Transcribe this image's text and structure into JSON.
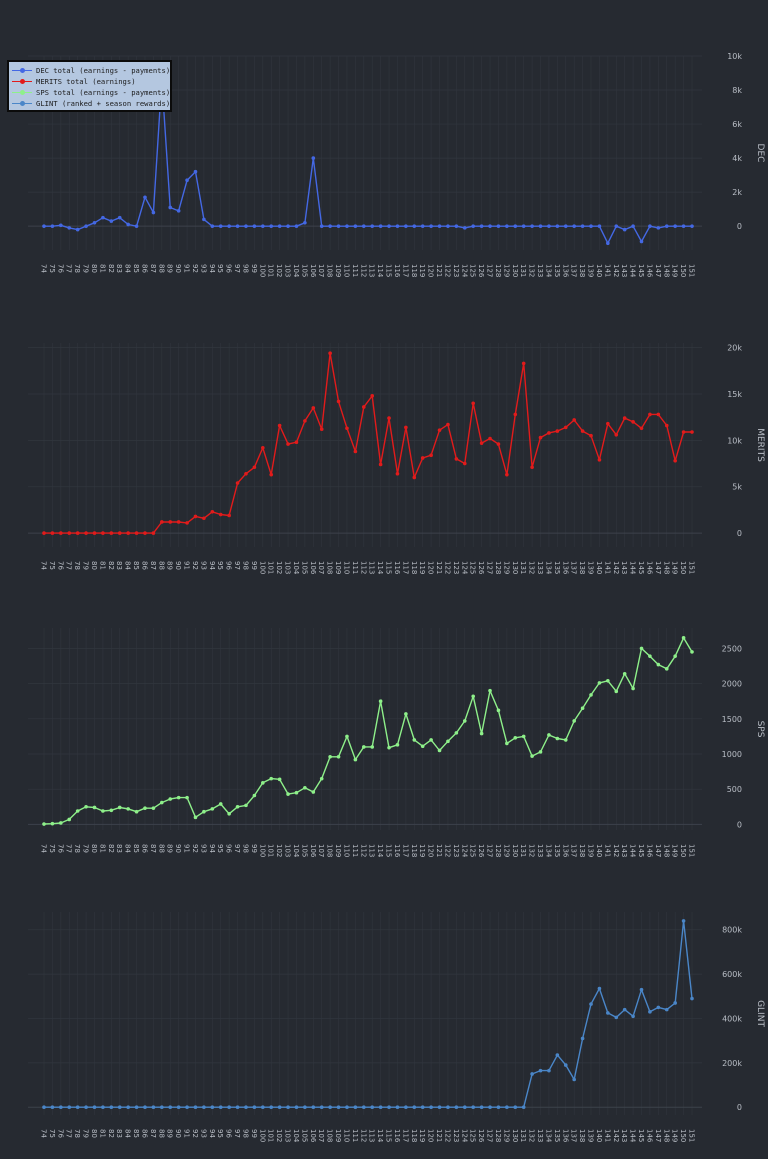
{
  "theme": {
    "background": "#262a31",
    "grid": "#31363e",
    "zero_line": "#3c424b",
    "tick_text": "#b9bec6",
    "legend_bg": "#b4c7e0"
  },
  "legend": [
    {
      "label": "DEC total (earnings - payments)",
      "color": "#4468e4"
    },
    {
      "label": "MERITS  total (earnings)",
      "color": "#e21b1b"
    },
    {
      "label": "SPS total (earnings - payments)",
      "color": "#8ef08a"
    },
    {
      "label": "GLINT (ranked + season rewards)",
      "color": "#4a86c8"
    }
  ],
  "chart_data": [
    {
      "type": "line",
      "ylabel": "DEC",
      "color": "#4468e4",
      "legend_position": "top-left",
      "grid": true,
      "ylim": [
        -1400,
        10000
      ],
      "yticks": [
        0,
        2000,
        4000,
        6000,
        8000,
        10000
      ],
      "ytick_labels": [
        "0",
        "2k",
        "4k",
        "6k",
        "8k",
        "10k"
      ],
      "x": [
        "74",
        "75",
        "76",
        "77",
        "78",
        "79",
        "80",
        "81",
        "82",
        "83",
        "84",
        "85",
        "86",
        "87",
        "88",
        "89",
        "90",
        "91",
        "92",
        "93",
        "94",
        "95",
        "96",
        "97",
        "98",
        "99",
        "100",
        "101",
        "102",
        "103",
        "104",
        "105",
        "106",
        "107",
        "108",
        "109",
        "110",
        "111",
        "112",
        "113",
        "114",
        "115",
        "116",
        "117",
        "118",
        "119",
        "120",
        "121",
        "122",
        "123",
        "124",
        "125",
        "126",
        "127",
        "128",
        "129",
        "130",
        "131",
        "132",
        "133",
        "134",
        "135",
        "136",
        "137",
        "138",
        "139",
        "140",
        "141",
        "142",
        "143",
        "144",
        "145",
        "146",
        "147",
        "148",
        "149",
        "150",
        "151"
      ],
      "values": [
        0,
        0,
        50,
        -100,
        -200,
        0,
        200,
        500,
        300,
        500,
        100,
        0,
        1700,
        800,
        8600,
        1100,
        900,
        2700,
        3200,
        400,
        0,
        0,
        0,
        0,
        0,
        0,
        0,
        0,
        0,
        0,
        0,
        200,
        4000,
        0,
        0,
        0,
        0,
        0,
        0,
        0,
        0,
        0,
        0,
        0,
        0,
        0,
        0,
        0,
        0,
        0,
        -100,
        0,
        0,
        0,
        0,
        0,
        0,
        0,
        0,
        0,
        0,
        0,
        0,
        0,
        0,
        0,
        0,
        -1000,
        0,
        -200,
        0,
        -900,
        0,
        -100,
        0,
        0,
        0,
        0
      ]
    },
    {
      "type": "line",
      "ylabel": "MERITS",
      "color": "#e21b1b",
      "grid": true,
      "ylim": [
        -1500,
        20500
      ],
      "yticks": [
        0,
        5000,
        10000,
        15000,
        20000
      ],
      "ytick_labels": [
        "0",
        "5k",
        "10k",
        "15k",
        "20k"
      ],
      "x": [
        "74",
        "75",
        "76",
        "77",
        "78",
        "79",
        "80",
        "81",
        "82",
        "83",
        "84",
        "85",
        "86",
        "87",
        "88",
        "89",
        "90",
        "91",
        "92",
        "93",
        "94",
        "95",
        "96",
        "97",
        "98",
        "99",
        "100",
        "101",
        "102",
        "103",
        "104",
        "105",
        "106",
        "107",
        "108",
        "109",
        "110",
        "111",
        "112",
        "113",
        "114",
        "115",
        "116",
        "117",
        "118",
        "119",
        "120",
        "121",
        "122",
        "123",
        "124",
        "125",
        "126",
        "127",
        "128",
        "129",
        "130",
        "131",
        "132",
        "133",
        "134",
        "135",
        "136",
        "137",
        "138",
        "139",
        "140",
        "141",
        "142",
        "143",
        "144",
        "145",
        "146",
        "147",
        "148",
        "149",
        "150",
        "151"
      ],
      "values": [
        0,
        0,
        0,
        0,
        0,
        0,
        0,
        0,
        0,
        0,
        0,
        0,
        0,
        0,
        1200,
        1200,
        1200,
        1100,
        1800,
        1600,
        2300,
        2000,
        1900,
        5400,
        6400,
        7100,
        9200,
        6300,
        11600,
        9600,
        9800,
        12100,
        13500,
        11200,
        19400,
        14200,
        11300,
        8800,
        13600,
        14800,
        7400,
        12400,
        6400,
        11400,
        6000,
        8100,
        8400,
        11100,
        11700,
        8000,
        7500,
        14000,
        9700,
        10200,
        9600,
        6300,
        12800,
        18300,
        7100,
        10300,
        10800,
        11000,
        11400,
        12200,
        11000,
        10500,
        7900,
        11800,
        10600,
        12400,
        12000,
        11300,
        12800,
        12800,
        11600,
        7800,
        10900,
        10900
      ]
    },
    {
      "type": "line",
      "ylabel": "SPS",
      "color": "#8ef08a",
      "grid": true,
      "ylim": [
        -80,
        2790
      ],
      "yticks": [
        0,
        500,
        1000,
        1500,
        2000,
        2500
      ],
      "ytick_labels": [
        "0",
        "500",
        "1000",
        "1500",
        "2000",
        "2500"
      ],
      "x": [
        "74",
        "75",
        "76",
        "77",
        "78",
        "79",
        "80",
        "81",
        "82",
        "83",
        "84",
        "85",
        "86",
        "87",
        "88",
        "89",
        "90",
        "91",
        "92",
        "93",
        "94",
        "95",
        "96",
        "97",
        "98",
        "99",
        "100",
        "101",
        "102",
        "103",
        "104",
        "105",
        "106",
        "107",
        "108",
        "109",
        "110",
        "111",
        "112",
        "113",
        "114",
        "115",
        "116",
        "117",
        "118",
        "119",
        "120",
        "121",
        "122",
        "123",
        "124",
        "125",
        "126",
        "127",
        "128",
        "129",
        "130",
        "131",
        "132",
        "133",
        "134",
        "135",
        "136",
        "137",
        "138",
        "139",
        "140",
        "141",
        "142",
        "143",
        "144",
        "145",
        "146",
        "147",
        "148",
        "149",
        "150",
        "151"
      ],
      "values": [
        5,
        10,
        20,
        70,
        190,
        250,
        240,
        190,
        200,
        240,
        220,
        180,
        230,
        230,
        310,
        360,
        380,
        380,
        100,
        180,
        220,
        290,
        150,
        250,
        270,
        410,
        590,
        650,
        640,
        430,
        450,
        520,
        460,
        650,
        960,
        960,
        1250,
        920,
        1100,
        1100,
        1750,
        1090,
        1130,
        1570,
        1200,
        1110,
        1200,
        1050,
        1180,
        1300,
        1470,
        1820,
        1290,
        1900,
        1620,
        1150,
        1230,
        1250,
        970,
        1030,
        1270,
        1220,
        1200,
        1470,
        1650,
        1840,
        2010,
        2040,
        1890,
        2140,
        1930,
        2500,
        2390,
        2270,
        2210,
        2390,
        2650,
        2450
      ]
    },
    {
      "type": "line",
      "ylabel": "GLINT",
      "color": "#4a86c8",
      "grid": true,
      "ylim": [
        -35000,
        880000
      ],
      "yticks": [
        0,
        200000,
        400000,
        600000,
        800000
      ],
      "ytick_labels": [
        "0",
        "200k",
        "400k",
        "600k",
        "800k"
      ],
      "x": [
        "74",
        "75",
        "76",
        "77",
        "78",
        "79",
        "80",
        "81",
        "82",
        "83",
        "84",
        "85",
        "86",
        "87",
        "88",
        "89",
        "90",
        "91",
        "92",
        "93",
        "94",
        "95",
        "96",
        "97",
        "98",
        "99",
        "100",
        "101",
        "102",
        "103",
        "104",
        "105",
        "106",
        "107",
        "108",
        "109",
        "110",
        "111",
        "112",
        "113",
        "114",
        "115",
        "116",
        "117",
        "118",
        "119",
        "120",
        "121",
        "122",
        "123",
        "124",
        "125",
        "126",
        "127",
        "128",
        "129",
        "130",
        "131",
        "132",
        "133",
        "134",
        "135",
        "136",
        "137",
        "138",
        "139",
        "140",
        "141",
        "142",
        "143",
        "144",
        "145",
        "146",
        "147",
        "148",
        "149",
        "150",
        "151"
      ],
      "values": [
        0,
        0,
        0,
        0,
        0,
        0,
        0,
        0,
        0,
        0,
        0,
        0,
        0,
        0,
        0,
        0,
        0,
        0,
        0,
        0,
        0,
        0,
        0,
        0,
        0,
        0,
        0,
        0,
        0,
        0,
        0,
        0,
        0,
        0,
        0,
        0,
        0,
        0,
        0,
        0,
        0,
        0,
        0,
        0,
        0,
        0,
        0,
        0,
        0,
        0,
        0,
        0,
        0,
        0,
        0,
        0,
        0,
        0,
        150000,
        165000,
        165000,
        235000,
        190000,
        125000,
        310000,
        465000,
        535000,
        425000,
        405000,
        440000,
        410000,
        530000,
        430000,
        450000,
        440000,
        470000,
        840000,
        490000
      ]
    }
  ]
}
